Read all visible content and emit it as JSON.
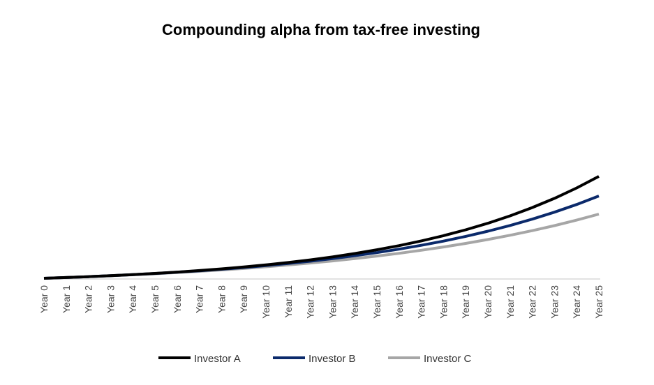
{
  "chart_data": {
    "type": "line",
    "title": "Compounding alpha from tax-free investing",
    "xlabel": "",
    "ylabel": "",
    "y_axis_visible": false,
    "grid": false,
    "legend_position": "bottom",
    "ylim": [
      0,
      300
    ],
    "categories": [
      "Year 0",
      "Year 1",
      "Year 2",
      "Year 3",
      "Year 4",
      "Year 5",
      "Year 6",
      "Year 7",
      "Year 8",
      "Year 9",
      "Year 10",
      "Year 11",
      "Year 12",
      "Year 13",
      "Year 14",
      "Year 15",
      "Year 16",
      "Year 17",
      "Year 18",
      "Year 19",
      "Year 20",
      "Year 21",
      "Year 22",
      "Year 23",
      "Year 24",
      "Year 25"
    ],
    "series": [
      {
        "name": "Investor A",
        "color": "#000000",
        "values": [
          0,
          1.1,
          2.3,
          3.7,
          5.2,
          7.0,
          8.9,
          11.1,
          13.5,
          16.2,
          19.2,
          22.6,
          26.4,
          30.7,
          35.5,
          40.9,
          46.8,
          53.6,
          61.1,
          69.5,
          78.9,
          89.5,
          101.4,
          114.6,
          129.5,
          146.1
        ]
      },
      {
        "name": "Investor B",
        "color": "#0b2a6b",
        "values": [
          0,
          1.1,
          2.3,
          3.7,
          5.2,
          6.9,
          8.7,
          10.7,
          13.0,
          15.4,
          18.2,
          21.2,
          24.5,
          28.2,
          32.3,
          36.8,
          41.8,
          47.3,
          53.3,
          60.1,
          67.5,
          75.7,
          84.8,
          94.8,
          105.8,
          118.0
        ]
      },
      {
        "name": "Investor C",
        "color": "#a6a6a6",
        "values": [
          0,
          1.1,
          2.3,
          3.6,
          5.0,
          6.5,
          8.2,
          10.0,
          12.0,
          14.1,
          16.5,
          19.1,
          21.9,
          24.9,
          28.3,
          31.9,
          35.8,
          40.2,
          44.9,
          50.0,
          55.6,
          61.7,
          68.3,
          75.5,
          83.4,
          92.0
        ]
      }
    ]
  }
}
